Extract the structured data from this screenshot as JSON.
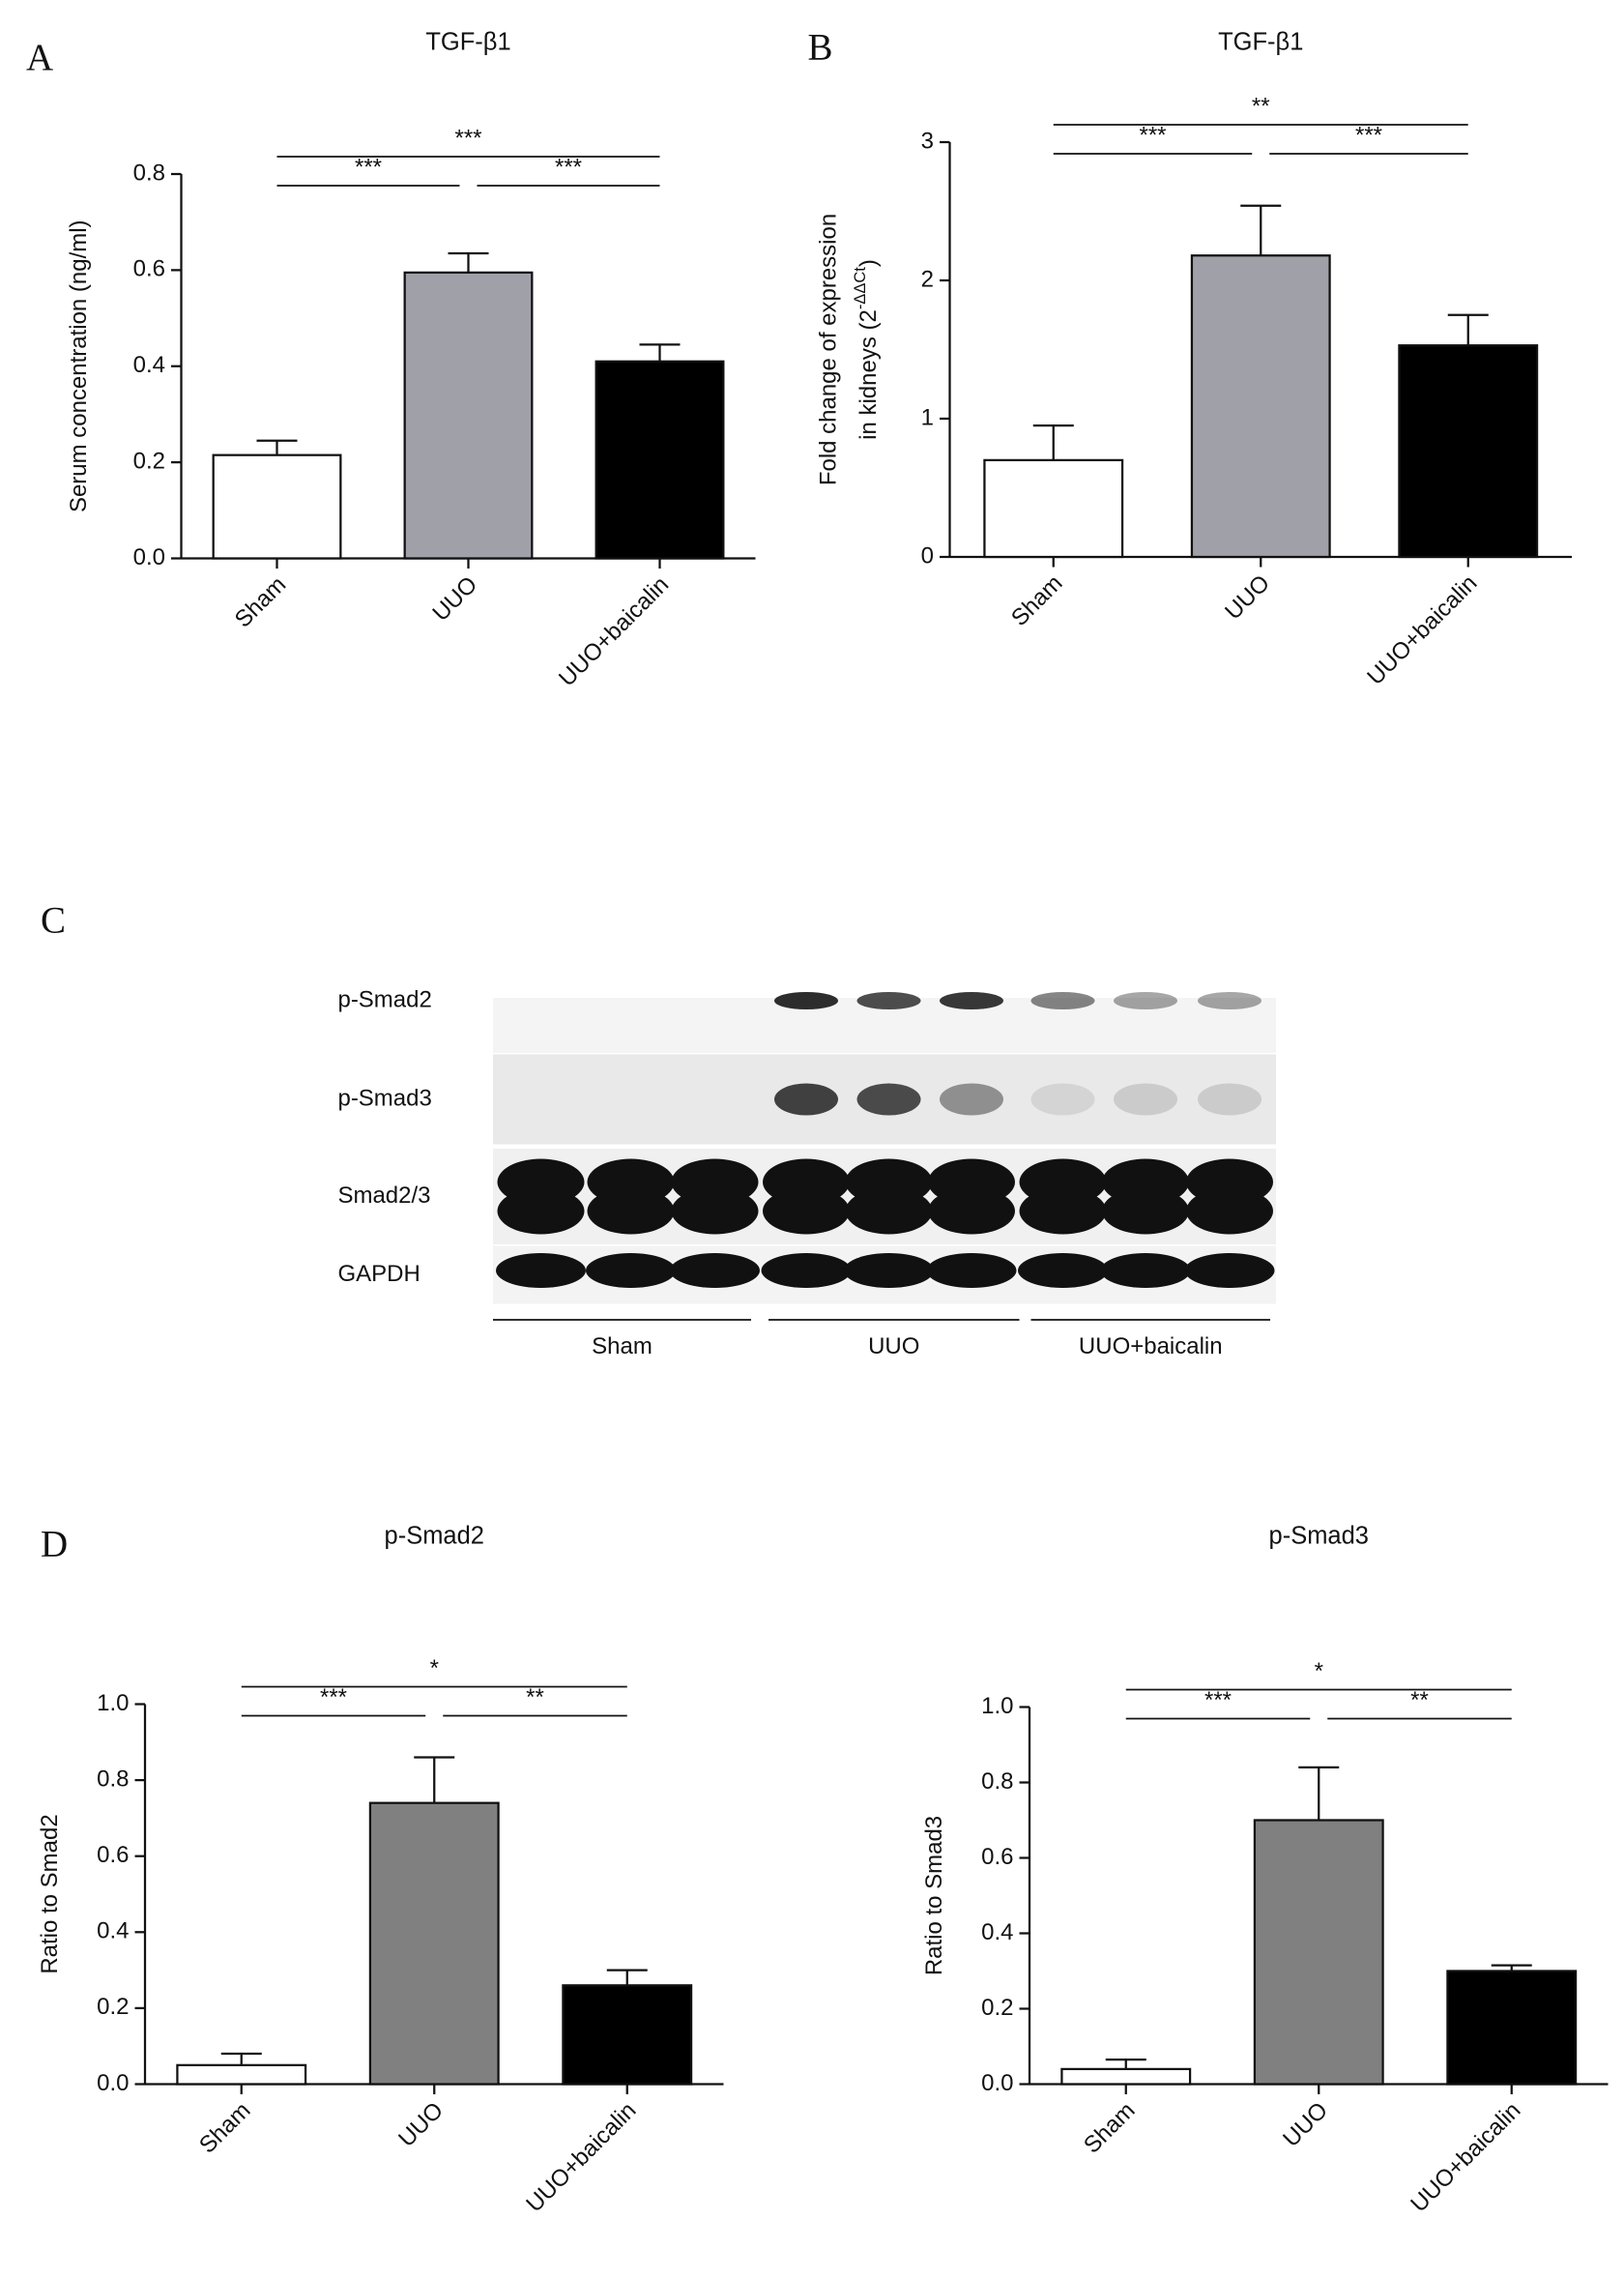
{
  "chart_data": [
    {
      "type": "bar",
      "panel": "A",
      "title": "TGF-β1",
      "ylabel": "Serum concentration (ng/ml)",
      "categories": [
        "Sham",
        "UUO",
        "UUO+baicalin"
      ],
      "values": [
        0.215,
        0.595,
        0.41
      ],
      "errors": [
        0.03,
        0.04,
        0.035
      ],
      "colors": [
        "#ffffff",
        "#a0a0a8",
        "#000000"
      ],
      "ylim": [
        0,
        0.8
      ],
      "yticks": [
        {
          "value": 0,
          "label": "0.0"
        },
        0.2,
        0.4,
        0.6,
        0.8
      ],
      "annotations": [
        "***",
        "***",
        "***"
      ]
    },
    {
      "type": "bar",
      "panel": "B",
      "title": "TGF-β1",
      "ylabel": [
        "Fold change of expression",
        "in kidneys (2"
      ],
      "ylabel_sup": "-ΔΔCt",
      "ylabel_end": ")",
      "categories": [
        "Sham",
        "UUO",
        "UUO+baicalin"
      ],
      "values": [
        0.7,
        2.18,
        1.53
      ],
      "errors": [
        0.25,
        0.36,
        0.22
      ],
      "colors": [
        "#ffffff",
        "#a0a0a8",
        "#000000"
      ],
      "ylim": [
        0,
        3
      ],
      "yticks": [
        0,
        1,
        2,
        3
      ],
      "annotations": [
        "***",
        "***",
        "**"
      ]
    },
    {
      "type": "bar",
      "panel": "D",
      "title": "p-Smad2",
      "ylabel": "Ratio to Smad2",
      "categories": [
        "Sham",
        "UUO",
        "UUO+baicalin"
      ],
      "values": [
        0.05,
        0.74,
        0.26
      ],
      "errors": [
        0.03,
        0.12,
        0.04
      ],
      "colors": [
        "#ffffff",
        "#808080",
        "#000000"
      ],
      "ylim": [
        0,
        1
      ],
      "yticks": [
        {
          "value": 0,
          "label": "0.0"
        },
        0.2,
        0.4,
        0.6,
        0.8,
        {
          "value": 1,
          "label": "1.0"
        }
      ],
      "annotations": [
        "***",
        "**",
        "*"
      ]
    },
    {
      "type": "bar",
      "title": "p-Smad3",
      "ylabel": "Ratio to Smad3",
      "categories": [
        "Sham",
        "UUO",
        "UUO+baicalin"
      ],
      "values": [
        0.04,
        0.7,
        0.3
      ],
      "errors": [
        0.025,
        0.14,
        0.015
      ],
      "colors": [
        "#ffffff",
        "#808080",
        "#000000"
      ],
      "ylim": [
        0,
        1
      ],
      "yticks": [
        {
          "value": 0,
          "label": "0.0"
        },
        0.2,
        0.4,
        0.6,
        0.8,
        {
          "value": 1,
          "label": "1.0"
        }
      ],
      "annotations": [
        "***",
        "**",
        "*"
      ]
    }
  ],
  "blot": {
    "panel": "C",
    "rows": [
      "p-Smad2",
      "p-Smad3",
      "Smad2/3",
      "GAPDH"
    ],
    "groups": [
      "Sham",
      "UUO",
      "UUO+baicalin"
    ]
  }
}
